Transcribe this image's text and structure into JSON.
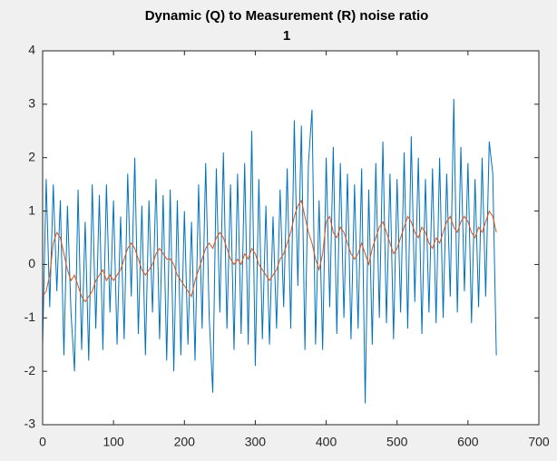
{
  "chart_data": {
    "type": "line",
    "title": "Dynamic (Q) to Measurement (R) noise ratio",
    "subtitle": "1",
    "x": [
      0,
      5,
      10,
      15,
      20,
      25,
      30,
      35,
      40,
      45,
      50,
      55,
      60,
      65,
      70,
      75,
      80,
      85,
      90,
      95,
      100,
      105,
      110,
      115,
      120,
      125,
      130,
      135,
      140,
      145,
      150,
      155,
      160,
      165,
      170,
      175,
      180,
      185,
      190,
      195,
      200,
      205,
      210,
      215,
      220,
      225,
      230,
      235,
      240,
      245,
      250,
      255,
      260,
      265,
      270,
      275,
      280,
      285,
      290,
      295,
      300,
      305,
      310,
      315,
      320,
      325,
      330,
      335,
      340,
      345,
      350,
      355,
      360,
      365,
      370,
      375,
      380,
      385,
      390,
      395,
      400,
      405,
      410,
      415,
      420,
      425,
      430,
      435,
      440,
      445,
      450,
      455,
      460,
      465,
      470,
      475,
      480,
      485,
      490,
      495,
      500,
      505,
      510,
      515,
      520,
      525,
      530,
      535,
      540,
      545,
      550,
      555,
      560,
      565,
      570,
      575,
      580,
      585,
      590,
      595,
      600,
      605,
      610,
      615,
      620,
      625,
      630,
      635,
      640
    ],
    "series": [
      {
        "color": "#0072bd",
        "values": [
          -1.5,
          1.6,
          -0.8,
          1.5,
          -0.5,
          1.2,
          -1.7,
          1.1,
          -0.9,
          -2.0,
          1.4,
          -1.6,
          0.8,
          -1.8,
          1.5,
          -1.2,
          1.3,
          -1.6,
          1.5,
          -0.9,
          1.2,
          -1.5,
          0.9,
          -1.4,
          1.7,
          -0.6,
          2.0,
          -1.3,
          1.1,
          -1.7,
          1.2,
          -0.9,
          1.6,
          -1.4,
          1.3,
          -1.8,
          1.4,
          -2.0,
          1.2,
          -1.7,
          1.0,
          -1.5,
          0.8,
          -1.8,
          1.5,
          -1.2,
          1.9,
          -1.0,
          -2.4,
          1.8,
          -0.9,
          2.1,
          -1.2,
          1.5,
          -1.6,
          1.7,
          -1.3,
          1.9,
          -1.5,
          2.5,
          -1.9,
          1.6,
          -1.4,
          1.1,
          -1.5,
          0.9,
          -1.2,
          1.4,
          -0.8,
          1.8,
          -1.2,
          2.7,
          -0.4,
          2.6,
          -1.6,
          1.9,
          2.9,
          -1.5,
          1.2,
          -1.6,
          2.0,
          -0.8,
          2.2,
          -1.3,
          1.9,
          -1.0,
          1.7,
          -1.4,
          1.5,
          -1.2,
          1.8,
          -2.6,
          1.4,
          -1.5,
          1.9,
          -1.0,
          2.3,
          -1.1,
          1.7,
          -1.4,
          1.6,
          -0.9,
          2.1,
          -1.2,
          2.4,
          -0.7,
          2.0,
          -1.3,
          1.6,
          -0.9,
          1.8,
          -1.1,
          2.0,
          -1.0,
          1.7,
          -0.6,
          3.1,
          -0.9,
          2.2,
          -0.5,
          1.9,
          -1.1,
          1.6,
          -0.8,
          2.0,
          -0.6,
          2.3,
          1.7,
          -1.7
        ]
      },
      {
        "color": "#d95319",
        "values": [
          -0.6,
          -0.5,
          -0.2,
          0.4,
          0.6,
          0.5,
          0.2,
          -0.1,
          -0.3,
          -0.2,
          -0.4,
          -0.6,
          -0.7,
          -0.6,
          -0.5,
          -0.3,
          -0.2,
          -0.1,
          -0.3,
          -0.2,
          -0.3,
          -0.2,
          -0.1,
          0.1,
          0.3,
          0.4,
          0.3,
          0.1,
          -0.1,
          -0.2,
          -0.1,
          0,
          0.2,
          0.3,
          0.2,
          0.1,
          0.1,
          0,
          -0.2,
          -0.3,
          -0.4,
          -0.5,
          -0.6,
          -0.3,
          -0.1,
          0.1,
          0.3,
          0.4,
          0.3,
          0.5,
          0.6,
          0.5,
          0.3,
          0.1,
          0,
          0.1,
          0,
          0.2,
          0.1,
          0.3,
          0.2,
          0,
          -0.1,
          -0.2,
          -0.3,
          -0.2,
          -0.1,
          0.1,
          0.2,
          0.4,
          0.6,
          0.9,
          1.1,
          1.2,
          0.9,
          0.6,
          0.4,
          0.1,
          -0.1,
          0.2,
          0.8,
          0.9,
          0.6,
          0.5,
          0.7,
          0.6,
          0.4,
          0.2,
          0.1,
          0.2,
          0.4,
          0.2,
          0,
          0.3,
          0.5,
          0.7,
          0.8,
          0.6,
          0.4,
          0.2,
          0.3,
          0.5,
          0.7,
          0.9,
          0.8,
          0.6,
          0.5,
          0.7,
          0.6,
          0.4,
          0.3,
          0.5,
          0.4,
          0.6,
          0.8,
          0.9,
          0.7,
          0.6,
          0.8,
          0.9,
          0.8,
          0.6,
          0.5,
          0.7,
          0.6,
          0.8,
          1.0,
          0.9,
          0.6
        ]
      }
    ],
    "xlim": [
      0,
      700
    ],
    "xticks": [
      0,
      100,
      200,
      300,
      400,
      500,
      600,
      700
    ],
    "ylim": [
      -3,
      4
    ],
    "yticks": [
      -3,
      -2,
      -1,
      0,
      1,
      2,
      3,
      4
    ]
  }
}
